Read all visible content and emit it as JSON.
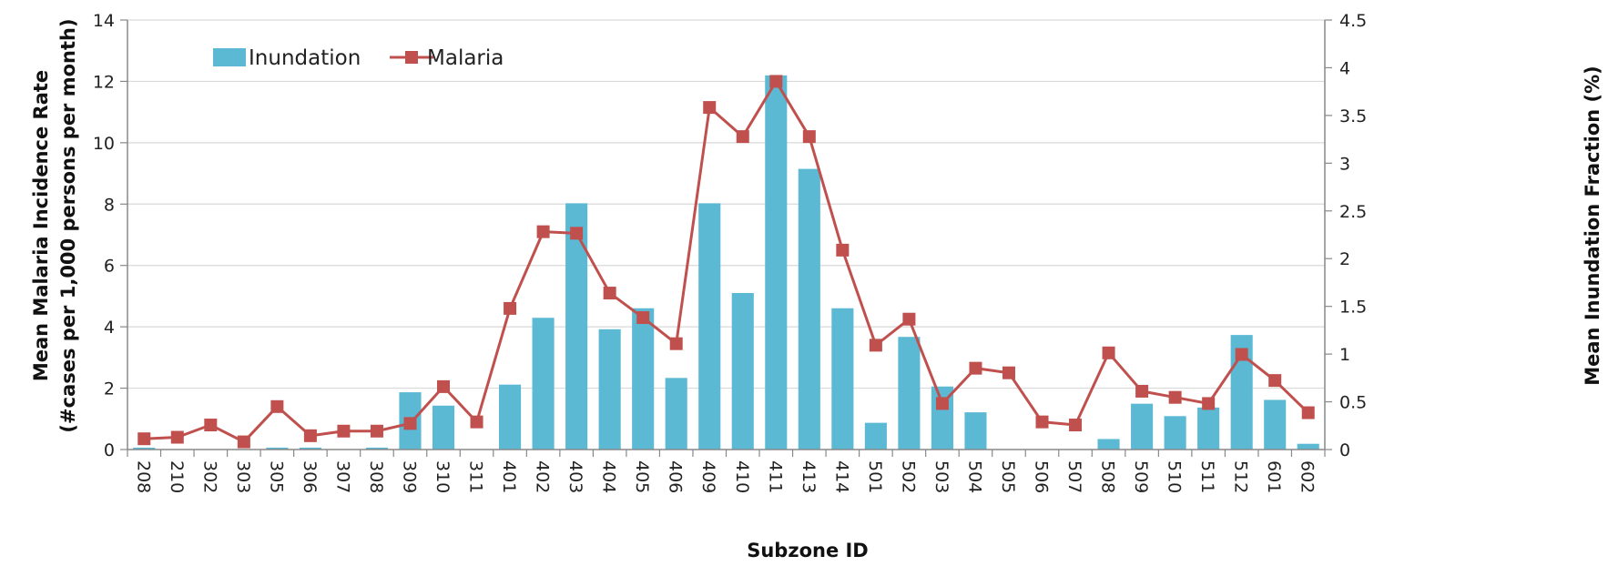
{
  "chart_data": {
    "type": "bar+line",
    "title": "",
    "categories": [
      "208",
      "210",
      "302",
      "303",
      "305",
      "306",
      "307",
      "308",
      "309",
      "310",
      "311",
      "401",
      "402",
      "403",
      "404",
      "405",
      "406",
      "409",
      "410",
      "411",
      "413",
      "414",
      "501",
      "502",
      "503",
      "504",
      "505",
      "506",
      "507",
      "508",
      "509",
      "510",
      "511",
      "512",
      "601",
      "602"
    ],
    "series": [
      {
        "name": "Inundation",
        "type": "bar",
        "axis": "right",
        "color": "#5BB9D4",
        "values": [
          0.02,
          0,
          0,
          0,
          0.02,
          0.02,
          0,
          0.02,
          0.6,
          0.46,
          0,
          0.68,
          1.38,
          2.58,
          1.26,
          1.48,
          0.75,
          2.58,
          1.64,
          3.92,
          2.94,
          1.48,
          0.28,
          1.18,
          0.66,
          0.39,
          0,
          0,
          0,
          0.11,
          0.48,
          0.35,
          0.44,
          1.2,
          0.52,
          0.06
        ]
      },
      {
        "name": "Malaria",
        "type": "line",
        "axis": "left",
        "color": "#C0504D",
        "values": [
          0.35,
          0.4,
          0.8,
          0.25,
          1.4,
          0.45,
          0.6,
          0.6,
          0.85,
          2.05,
          0.9,
          4.6,
          7.1,
          7.05,
          5.1,
          4.3,
          3.45,
          11.15,
          10.2,
          12.0,
          10.2,
          6.5,
          3.4,
          4.25,
          1.5,
          2.65,
          2.5,
          0.9,
          0.8,
          3.15,
          1.9,
          1.7,
          1.5,
          3.1,
          2.25,
          1.2
        ]
      }
    ],
    "xlabel": "Subzone ID",
    "ylabel_left": [
      "Mean Malaria Incidence Rate",
      "(#cases per 1,000 persons per month)"
    ],
    "ylabel_right": "Mean Inundation Fraction (%)",
    "ylim_left": [
      0,
      14
    ],
    "ylim_right": [
      0,
      4.5
    ],
    "yticks_left": [
      "0",
      "2",
      "4",
      "6",
      "8",
      "10",
      "12",
      "14"
    ],
    "yticks_right": [
      "0",
      "0.5",
      "1",
      "1.5",
      "2",
      "2.5",
      "3",
      "3.5",
      "4",
      "4.5"
    ],
    "grid": true,
    "legend": {
      "position": "top-left",
      "entries": [
        "Inundation",
        "Malaria"
      ]
    }
  }
}
